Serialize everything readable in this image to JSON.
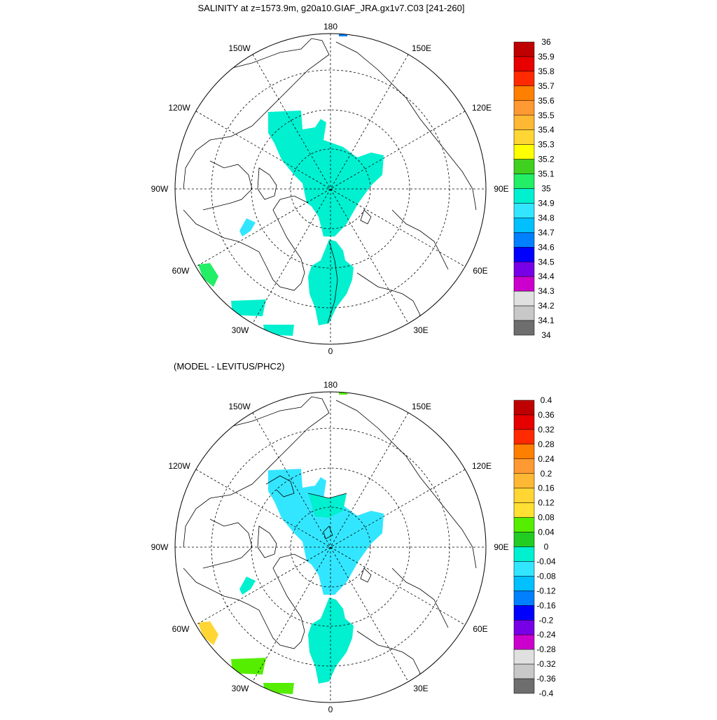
{
  "panel1": {
    "title": "SALINITY at z=1573.9m, g20a10.GIAF_JRA.gx1v7.C03 [241-260]",
    "colorbar": {
      "labels": [
        "36",
        "35.9",
        "35.8",
        "35.7",
        "35.6",
        "35.5",
        "35.4",
        "35.3",
        "35.2",
        "35.1",
        "35",
        "34.9",
        "34.8",
        "34.7",
        "34.6",
        "34.5",
        "34.4",
        "34.3",
        "34.2",
        "34.1",
        "34"
      ],
      "colors": [
        "#bf0000",
        "#e60000",
        "#ff2a00",
        "#ff7f00",
        "#ff9933",
        "#ffb833",
        "#ffd633",
        "#ffff00",
        "#40d020",
        "#22ee66",
        "#00f0d0",
        "#33e6ff",
        "#00c0ff",
        "#0080ff",
        "#0000ff",
        "#7700e6",
        "#cc00cc",
        "#e0e0e0",
        "#c8c8c8",
        "#6e6e6e"
      ]
    }
  },
  "panel2": {
    "title": "(MODEL - LEVITUS/PHC2)",
    "colorbar": {
      "labels": [
        "0.4",
        "0.36",
        "0.32",
        "0.28",
        "0.24",
        "0.2",
        "0.16",
        "0.12",
        "0.08",
        "0.04",
        "0",
        "-0.04",
        "-0.08",
        "-0.12",
        "-0.16",
        "-0.2",
        "-0.24",
        "-0.28",
        "-0.32",
        "-0.36",
        "-0.4"
      ],
      "colors": [
        "#bf0000",
        "#e60000",
        "#ff2a00",
        "#ff7f00",
        "#ff9933",
        "#ffb833",
        "#ffd633",
        "#ffe033",
        "#55ee00",
        "#22cc22",
        "#00f0d0",
        "#33e6ff",
        "#00c0ff",
        "#0080ff",
        "#0000ff",
        "#7700e6",
        "#cc00cc",
        "#e0e0e0",
        "#c8c8c8",
        "#6e6e6e"
      ]
    }
  },
  "lon_labels": {
    "l180": "180",
    "l150w": "150W",
    "l150e": "150E",
    "l120w": "120W",
    "l120e": "120E",
    "l90w": "90W",
    "l90e": "90E",
    "l60w": "60W",
    "l60e": "60E",
    "l30w": "30W",
    "l30e": "30E",
    "l0": "0"
  }
}
